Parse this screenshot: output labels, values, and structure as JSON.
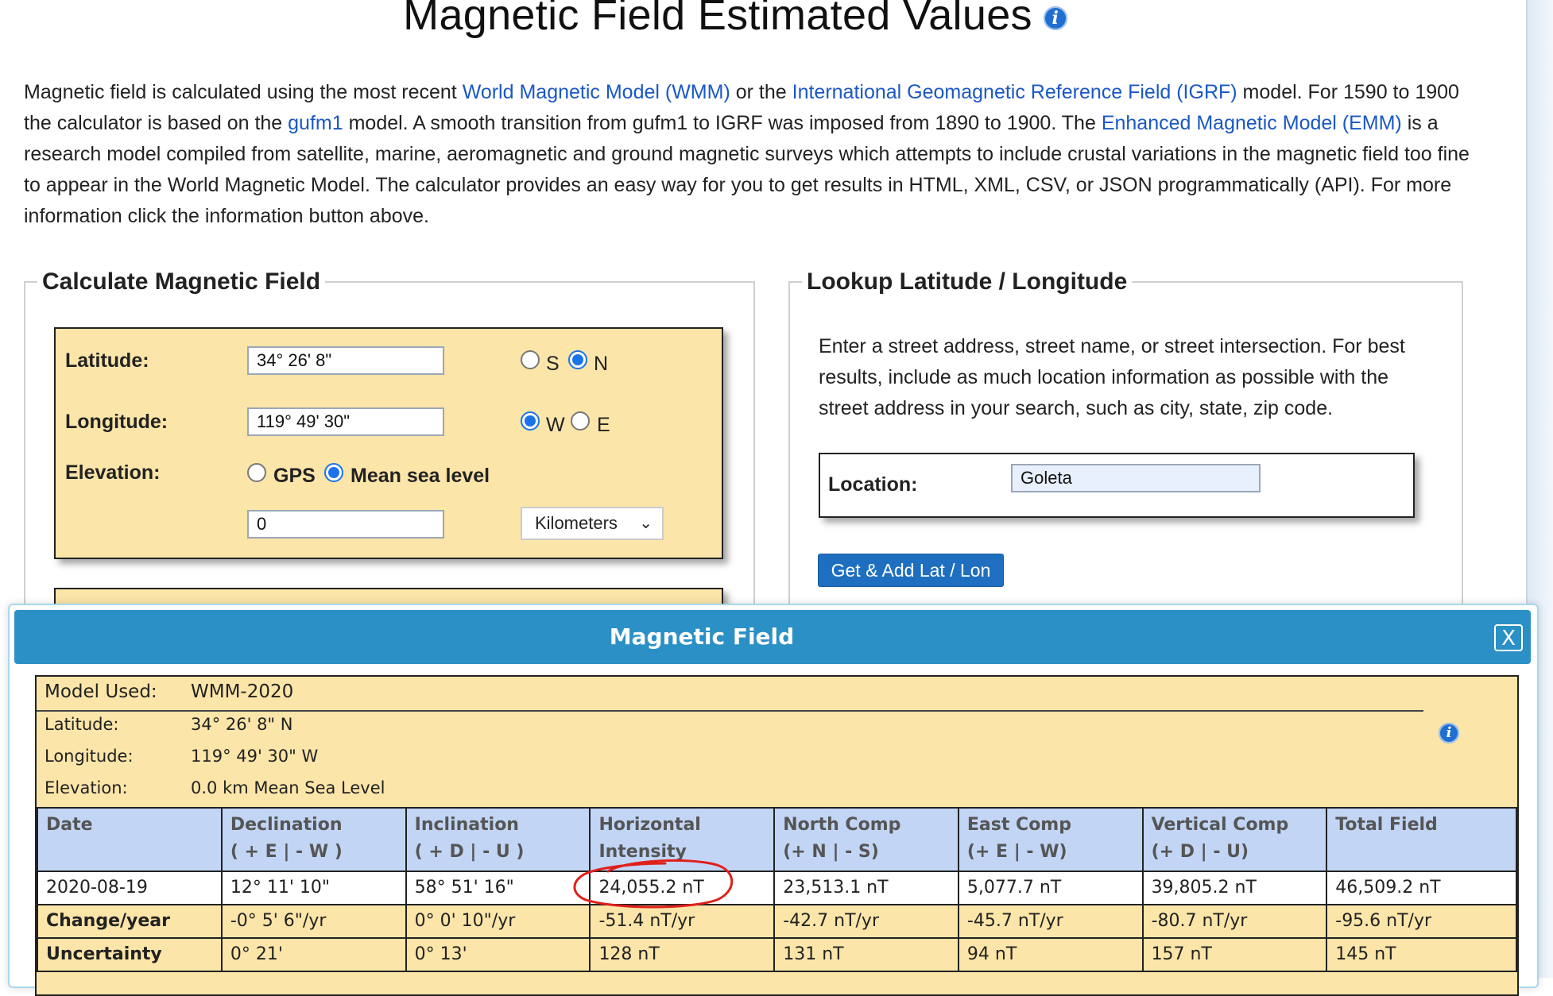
{
  "page": {
    "title": "Magnetic Field Estimated Values",
    "intro": {
      "t1": "Magnetic field is calculated using the most recent ",
      "link_wmm": "World Magnetic Model (WMM)",
      "t2": " or the ",
      "link_igrf": "International Geomagnetic Reference Field (IGRF)",
      "t3": " model. For 1590 to 1900 the calculator is based on the ",
      "link_gufm1": "gufm1",
      "t4": " model. A smooth transition from gufm1 to IGRF was imposed from 1890 to 1900. The ",
      "link_emm": "Enhanced Magnetic Model (EMM)",
      "t5": " is a research model compiled from satellite, marine, aeromagnetic and ground magnetic surveys which attempts to include crustal variations in the magnetic field too fine to appear in the World Magnetic Model. The calculator provides an easy way for you to get results in HTML, XML, CSV, or JSON programmatically (API). For more information click the information button above."
    }
  },
  "calc": {
    "legend": "Calculate Magnetic Field",
    "latitude_label": "Latitude:",
    "latitude_value": "34° 26' 8\"",
    "lat_s": "S",
    "lat_n": "N",
    "longitude_label": "Longitude:",
    "longitude_value": "119° 49' 30\"",
    "lon_w": "W",
    "lon_e": "E",
    "elevation_label": "Elevation:",
    "elev_gps": "GPS",
    "elev_msl": "Mean sea level",
    "elevation_value": "0",
    "elevation_unit": "Kilometers"
  },
  "lookup": {
    "legend": "Lookup Latitude / Longitude",
    "description": "Enter a street address, street name, or street intersection. For best results, include as much location information as possible with the street address in your search, such as city, state, zip code.",
    "location_label": "Location:",
    "location_value": "Goleta",
    "button": "Get & Add Lat / Lon"
  },
  "dialog": {
    "title": "Magnetic Field",
    "close": "X",
    "model_label": "Model Used:",
    "model_value": "WMM-2020",
    "lat_label": "Latitude:",
    "lat_value": "34° 26' 8\" N",
    "lon_label": "Longitude:",
    "lon_value": "119° 49' 30\" W",
    "elev_label": "Elevation:",
    "elev_value": "0.0 km Mean Sea Level",
    "headers": [
      {
        "a": "Date",
        "b": ""
      },
      {
        "a": "Declination",
        "b": "( + E  | - W )"
      },
      {
        "a": "Inclination",
        "b": "( + D  | - U )"
      },
      {
        "a": "Horizontal",
        "b": "Intensity"
      },
      {
        "a": "North Comp",
        "b": "(+ N  | - S)"
      },
      {
        "a": "East Comp",
        "b": "(+ E  | - W)"
      },
      {
        "a": "Vertical Comp",
        "b": "(+ D  | - U)"
      },
      {
        "a": "Total Field",
        "b": ""
      }
    ],
    "rows": [
      [
        "2020-08-19",
        "12° 11' 10\"",
        "58° 51' 16\"",
        "24,055.2 nT",
        "23,513.1 nT",
        "5,077.7 nT",
        "39,805.2 nT",
        "46,509.2 nT"
      ],
      [
        "Change/year",
        "-0° 5' 6\"/yr",
        "0° 0' 10\"/yr",
        "-51.4 nT/yr",
        "-42.7 nT/yr",
        "-45.7 nT/yr",
        "-80.7 nT/yr",
        "-95.6 nT/yr"
      ],
      [
        "Uncertainty",
        "0° 21'",
        "0° 13'",
        "128 nT",
        "131 nT",
        "94 nT",
        "157 nT",
        "145 nT"
      ]
    ]
  },
  "colors": {
    "link": "#1a58c4",
    "panel_yellow": "#fbe5a8",
    "header_blue": "#c2d5f5",
    "dialog_bar": "#2b90c6",
    "annotation_red": "#e0201b"
  }
}
